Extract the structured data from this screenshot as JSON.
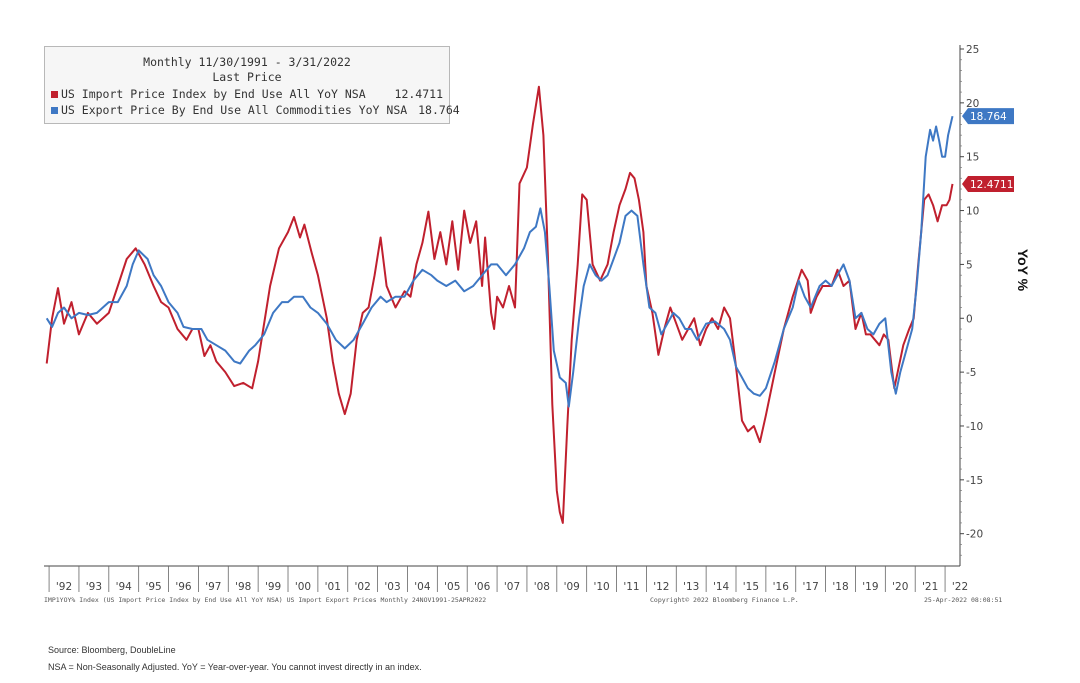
{
  "chart_data": {
    "type": "line",
    "header": {
      "range": "Monthly 11/30/1991 - 3/31/2022",
      "subtitle": "Last Price"
    },
    "series": [
      {
        "name": "US Import Price Index by End Use All YoY NSA",
        "last_value": "12.4711",
        "color": "#c0202e",
        "points": [
          [
            1991.92,
            -4.2
          ],
          [
            1992.1,
            0
          ],
          [
            1992.3,
            2.8
          ],
          [
            1992.5,
            -0.5
          ],
          [
            1992.75,
            1.5
          ],
          [
            1993.0,
            -1.5
          ],
          [
            1993.3,
            0.5
          ],
          [
            1993.6,
            -0.5
          ],
          [
            1994.0,
            0.5
          ],
          [
            1994.3,
            3.0
          ],
          [
            1994.6,
            5.5
          ],
          [
            1994.9,
            6.5
          ],
          [
            1995.2,
            5.0
          ],
          [
            1995.5,
            3.0
          ],
          [
            1995.75,
            1.5
          ],
          [
            1996.0,
            1.0
          ],
          [
            1996.3,
            -1.0
          ],
          [
            1996.6,
            -2.0
          ],
          [
            1996.8,
            -1.0
          ],
          [
            1997.0,
            -1.0
          ],
          [
            1997.2,
            -3.5
          ],
          [
            1997.4,
            -2.5
          ],
          [
            1997.6,
            -4.0
          ],
          [
            1997.9,
            -5.0
          ],
          [
            1998.2,
            -6.3
          ],
          [
            1998.5,
            -6.0
          ],
          [
            1998.8,
            -6.5
          ],
          [
            1999.0,
            -4.0
          ],
          [
            1999.2,
            -0.5
          ],
          [
            1999.4,
            3.0
          ],
          [
            1999.7,
            6.5
          ],
          [
            2000.0,
            8.0
          ],
          [
            2000.2,
            9.4
          ],
          [
            2000.4,
            7.5
          ],
          [
            2000.55,
            8.7
          ],
          [
            2000.8,
            6.0
          ],
          [
            2001.0,
            4.0
          ],
          [
            2001.3,
            0
          ],
          [
            2001.5,
            -4.0
          ],
          [
            2001.7,
            -7.0
          ],
          [
            2001.9,
            -8.9
          ],
          [
            2002.1,
            -7.0
          ],
          [
            2002.3,
            -2.0
          ],
          [
            2002.5,
            0.5
          ],
          [
            2002.7,
            1.0
          ],
          [
            2002.9,
            4.0
          ],
          [
            2003.1,
            7.5
          ],
          [
            2003.3,
            3.0
          ],
          [
            2003.6,
            1.0
          ],
          [
            2003.9,
            2.5
          ],
          [
            2004.1,
            2.0
          ],
          [
            2004.3,
            5.0
          ],
          [
            2004.5,
            7.0
          ],
          [
            2004.7,
            9.9
          ],
          [
            2004.9,
            5.5
          ],
          [
            2005.1,
            8.0
          ],
          [
            2005.3,
            5.0
          ],
          [
            2005.5,
            9.0
          ],
          [
            2005.7,
            4.5
          ],
          [
            2005.9,
            10.0
          ],
          [
            2006.1,
            7.0
          ],
          [
            2006.3,
            9.0
          ],
          [
            2006.5,
            3.0
          ],
          [
            2006.6,
            7.5
          ],
          [
            2006.8,
            0.5
          ],
          [
            2006.9,
            -1.0
          ],
          [
            2007.0,
            2.0
          ],
          [
            2007.2,
            1.0
          ],
          [
            2007.4,
            3.0
          ],
          [
            2007.6,
            1.0
          ],
          [
            2007.75,
            12.5
          ],
          [
            2008.0,
            14.0
          ],
          [
            2008.2,
            18.0
          ],
          [
            2008.4,
            21.5
          ],
          [
            2008.55,
            17.0
          ],
          [
            2008.7,
            6.0
          ],
          [
            2008.85,
            -8.0
          ],
          [
            2009.0,
            -16.0
          ],
          [
            2009.1,
            -18.0
          ],
          [
            2009.2,
            -19.0
          ],
          [
            2009.35,
            -10.0
          ],
          [
            2009.5,
            -2.0
          ],
          [
            2009.7,
            5.0
          ],
          [
            2009.85,
            11.5
          ],
          [
            2010.0,
            11.0
          ],
          [
            2010.2,
            5.0
          ],
          [
            2010.45,
            3.5
          ],
          [
            2010.7,
            5.0
          ],
          [
            2010.9,
            8.0
          ],
          [
            2011.1,
            10.5
          ],
          [
            2011.3,
            12.0
          ],
          [
            2011.45,
            13.5
          ],
          [
            2011.6,
            13.0
          ],
          [
            2011.75,
            11.0
          ],
          [
            2011.9,
            8.0
          ],
          [
            2012.0,
            3.0
          ],
          [
            2012.2,
            0.5
          ],
          [
            2012.4,
            -3.4
          ],
          [
            2012.6,
            -1.0
          ],
          [
            2012.8,
            1.0
          ],
          [
            2013.0,
            -0.5
          ],
          [
            2013.2,
            -2.0
          ],
          [
            2013.4,
            -1.0
          ],
          [
            2013.6,
            0
          ],
          [
            2013.8,
            -2.5
          ],
          [
            2014.0,
            -1.0
          ],
          [
            2014.2,
            0
          ],
          [
            2014.4,
            -1.0
          ],
          [
            2014.6,
            1.0
          ],
          [
            2014.8,
            0
          ],
          [
            2015.0,
            -4.5
          ],
          [
            2015.2,
            -9.5
          ],
          [
            2015.4,
            -10.5
          ],
          [
            2015.6,
            -10.0
          ],
          [
            2015.8,
            -11.5
          ],
          [
            2016.0,
            -9.0
          ],
          [
            2016.3,
            -5.0
          ],
          [
            2016.6,
            -1.0
          ],
          [
            2016.9,
            2.0
          ],
          [
            2017.2,
            4.5
          ],
          [
            2017.4,
            3.5
          ],
          [
            2017.5,
            0.5
          ],
          [
            2017.7,
            2.0
          ],
          [
            2017.9,
            3.0
          ],
          [
            2018.2,
            3.0
          ],
          [
            2018.4,
            4.5
          ],
          [
            2018.6,
            3.0
          ],
          [
            2018.8,
            3.5
          ],
          [
            2019.0,
            -1.0
          ],
          [
            2019.2,
            0.5
          ],
          [
            2019.35,
            -1.5
          ],
          [
            2019.5,
            -1.5
          ],
          [
            2019.65,
            -2.0
          ],
          [
            2019.8,
            -2.5
          ],
          [
            2019.95,
            -1.5
          ],
          [
            2020.1,
            -2.0
          ],
          [
            2020.3,
            -6.5
          ],
          [
            2020.45,
            -4.5
          ],
          [
            2020.6,
            -2.5
          ],
          [
            2020.8,
            -1.0
          ],
          [
            2020.95,
            0
          ],
          [
            2021.1,
            5.0
          ],
          [
            2021.3,
            11.0
          ],
          [
            2021.45,
            11.5
          ],
          [
            2021.6,
            10.5
          ],
          [
            2021.75,
            9.0
          ],
          [
            2021.9,
            10.5
          ],
          [
            2022.05,
            10.5
          ],
          [
            2022.15,
            11.0
          ],
          [
            2022.25,
            12.4711
          ]
        ]
      },
      {
        "name": "US Export Price By End Use All Commodities YoY NSA",
        "last_value": "18.764",
        "color": "#3e78c4",
        "points": [
          [
            1991.92,
            0
          ],
          [
            1992.1,
            -0.8
          ],
          [
            1992.3,
            0.5
          ],
          [
            1992.5,
            1.0
          ],
          [
            1992.75,
            0
          ],
          [
            1993.0,
            0.5
          ],
          [
            1993.3,
            0.3
          ],
          [
            1993.6,
            0.5
          ],
          [
            1994.0,
            1.5
          ],
          [
            1994.3,
            1.5
          ],
          [
            1994.6,
            3.0
          ],
          [
            1994.8,
            5.0
          ],
          [
            1995.0,
            6.3
          ],
          [
            1995.3,
            5.5
          ],
          [
            1995.5,
            4.0
          ],
          [
            1995.75,
            3.0
          ],
          [
            1996.0,
            1.5
          ],
          [
            1996.3,
            0.5
          ],
          [
            1996.5,
            -0.8
          ],
          [
            1996.8,
            -1.0
          ],
          [
            1997.1,
            -1.0
          ],
          [
            1997.3,
            -2.0
          ],
          [
            1997.6,
            -2.5
          ],
          [
            1997.9,
            -3.0
          ],
          [
            1998.2,
            -4.0
          ],
          [
            1998.4,
            -4.2
          ],
          [
            1998.7,
            -3.0
          ],
          [
            1998.9,
            -2.5
          ],
          [
            1999.2,
            -1.5
          ],
          [
            1999.5,
            0.5
          ],
          [
            1999.8,
            1.5
          ],
          [
            2000.0,
            1.5
          ],
          [
            2000.2,
            2.0
          ],
          [
            2000.5,
            2.0
          ],
          [
            2000.75,
            1.0
          ],
          [
            2001.0,
            0.5
          ],
          [
            2001.3,
            -0.5
          ],
          [
            2001.6,
            -2.0
          ],
          [
            2001.9,
            -2.8
          ],
          [
            2002.2,
            -2.0
          ],
          [
            2002.5,
            -0.5
          ],
          [
            2002.8,
            1.0
          ],
          [
            2003.1,
            2.0
          ],
          [
            2003.3,
            1.5
          ],
          [
            2003.6,
            2.0
          ],
          [
            2003.9,
            2.0
          ],
          [
            2004.2,
            3.5
          ],
          [
            2004.5,
            4.5
          ],
          [
            2004.8,
            4.0
          ],
          [
            2005.0,
            3.5
          ],
          [
            2005.3,
            3.0
          ],
          [
            2005.6,
            3.5
          ],
          [
            2005.9,
            2.5
          ],
          [
            2006.2,
            3.0
          ],
          [
            2006.5,
            4.0
          ],
          [
            2006.8,
            5.0
          ],
          [
            2007.0,
            5.0
          ],
          [
            2007.3,
            4.0
          ],
          [
            2007.6,
            5.0
          ],
          [
            2007.9,
            6.5
          ],
          [
            2008.1,
            8.0
          ],
          [
            2008.3,
            8.5
          ],
          [
            2008.45,
            10.2
          ],
          [
            2008.6,
            8.0
          ],
          [
            2008.75,
            3.0
          ],
          [
            2008.9,
            -3.0
          ],
          [
            2009.1,
            -5.5
          ],
          [
            2009.3,
            -6.0
          ],
          [
            2009.4,
            -8.2
          ],
          [
            2009.55,
            -5.0
          ],
          [
            2009.75,
            0
          ],
          [
            2009.9,
            3.0
          ],
          [
            2010.1,
            5.0
          ],
          [
            2010.3,
            4.0
          ],
          [
            2010.5,
            3.5
          ],
          [
            2010.7,
            4.0
          ],
          [
            2010.9,
            5.5
          ],
          [
            2011.1,
            7.0
          ],
          [
            2011.3,
            9.5
          ],
          [
            2011.5,
            10.0
          ],
          [
            2011.7,
            9.5
          ],
          [
            2011.9,
            5.0
          ],
          [
            2012.1,
            1.0
          ],
          [
            2012.3,
            0.5
          ],
          [
            2012.5,
            -1.5
          ],
          [
            2012.7,
            -0.5
          ],
          [
            2012.9,
            0.5
          ],
          [
            2013.1,
            0
          ],
          [
            2013.3,
            -1.0
          ],
          [
            2013.5,
            -1.0
          ],
          [
            2013.7,
            -2.0
          ],
          [
            2014.0,
            -0.5
          ],
          [
            2014.3,
            -0.3
          ],
          [
            2014.6,
            -1.0
          ],
          [
            2014.8,
            -2.0
          ],
          [
            2015.0,
            -4.5
          ],
          [
            2015.2,
            -5.5
          ],
          [
            2015.4,
            -6.5
          ],
          [
            2015.6,
            -7.0
          ],
          [
            2015.8,
            -7.2
          ],
          [
            2016.0,
            -6.5
          ],
          [
            2016.3,
            -4.0
          ],
          [
            2016.6,
            -1.0
          ],
          [
            2016.9,
            1.0
          ],
          [
            2017.1,
            3.5
          ],
          [
            2017.3,
            2.0
          ],
          [
            2017.5,
            1.0
          ],
          [
            2017.8,
            3.0
          ],
          [
            2018.0,
            3.5
          ],
          [
            2018.2,
            3.0
          ],
          [
            2018.4,
            4.0
          ],
          [
            2018.6,
            5.0
          ],
          [
            2018.8,
            3.5
          ],
          [
            2019.0,
            0
          ],
          [
            2019.2,
            0.5
          ],
          [
            2019.4,
            -1.0
          ],
          [
            2019.6,
            -1.5
          ],
          [
            2019.8,
            -0.5
          ],
          [
            2020.0,
            0
          ],
          [
            2020.2,
            -5.0
          ],
          [
            2020.35,
            -7.0
          ],
          [
            2020.5,
            -5.0
          ],
          [
            2020.7,
            -3.0
          ],
          [
            2020.9,
            -1.0
          ],
          [
            2021.05,
            3.0
          ],
          [
            2021.2,
            8.0
          ],
          [
            2021.35,
            15.0
          ],
          [
            2021.5,
            17.5
          ],
          [
            2021.6,
            16.5
          ],
          [
            2021.7,
            17.8
          ],
          [
            2021.8,
            16.5
          ],
          [
            2021.9,
            15.0
          ],
          [
            2022.0,
            15.0
          ],
          [
            2022.1,
            17.0
          ],
          [
            2022.25,
            18.764
          ]
        ]
      }
    ],
    "xlim": [
      1991.83,
      2022.5
    ],
    "ylim": [
      -23,
      25
    ],
    "y_ticks": [
      25,
      20,
      15,
      10,
      5,
      0,
      -5,
      -10,
      -15,
      -20
    ],
    "x_tick_labels": [
      "'92",
      "'93",
      "'94",
      "'95",
      "'96",
      "'97",
      "'98",
      "'99",
      "'00",
      "'01",
      "'02",
      "'03",
      "'04",
      "'05",
      "'06",
      "'07",
      "'08",
      "'09",
      "'10",
      "'11",
      "'12",
      "'13",
      "'14",
      "'15",
      "'16",
      "'17",
      "'18",
      "'19",
      "'20",
      "'21",
      "'22"
    ],
    "ylabel": "YoY %",
    "grid": false,
    "legend_position": "top-left"
  },
  "source_line": {
    "left": "IMP1YOY% Index (US Import Price Index by End Use All YoY NSA) US Import Export Prices  Monthly 24NOV1991-25APR2022",
    "center": "Copyright© 2022 Bloomberg Finance L.P.",
    "right": "25-Apr-2022 08:08:51"
  },
  "footer": {
    "source": "Source: Bloomberg, DoubleLine",
    "note": "NSA = Non-Seasonally Adjusted. YoY = Year-over-year. You cannot invest directly in an index."
  }
}
